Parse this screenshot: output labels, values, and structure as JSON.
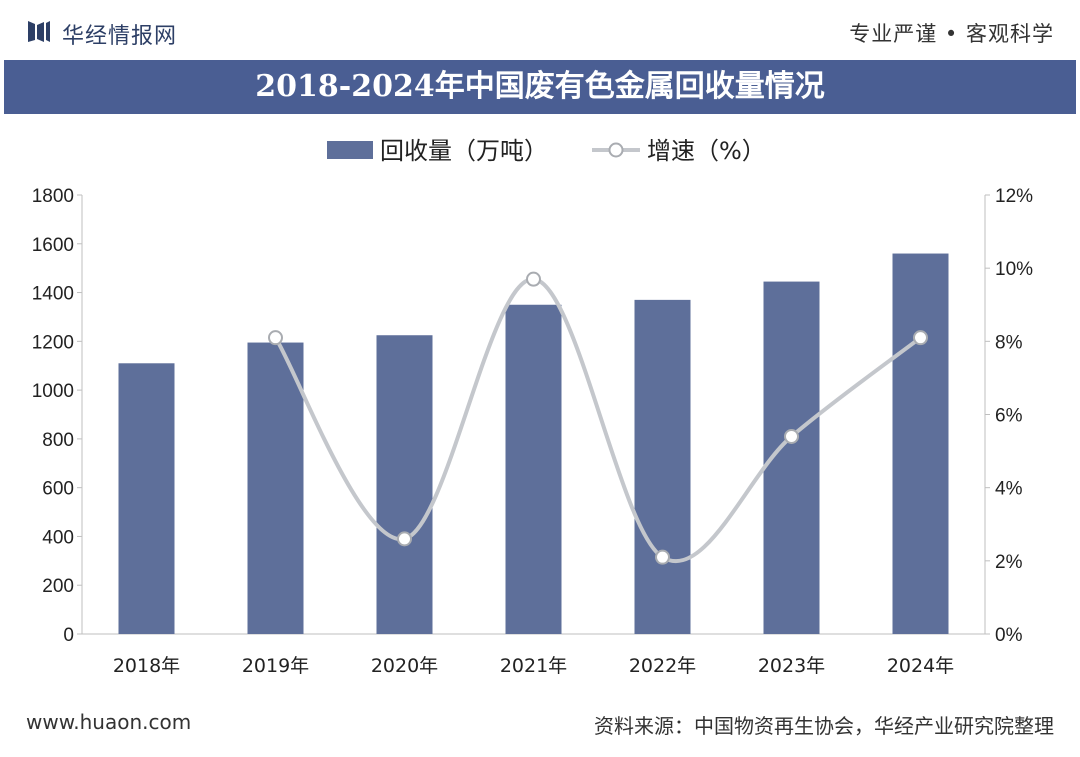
{
  "header": {
    "brand": "华经情报网",
    "slogan": "专业严谨 • 客观科学"
  },
  "footer": {
    "url": "www.huaon.com",
    "source": "资料来源：中国物资再生协会，华经产业研究院整理"
  },
  "colors": {
    "bar": "#5e6f9a",
    "line": "#c4c7cc",
    "title_band": "#4a5e93"
  },
  "chart_data": {
    "type": "bar",
    "title": "2018-2024年中国废有色金属回收量情况",
    "categories": [
      "2018年",
      "2019年",
      "2020年",
      "2021年",
      "2022年",
      "2023年",
      "2024年"
    ],
    "series": [
      {
        "name": "回收量（万吨）",
        "kind": "bar",
        "axis": "left",
        "values": [
          1110,
          1195,
          1225,
          1350,
          1370,
          1445,
          1560
        ]
      },
      {
        "name": "增速（%）",
        "kind": "line",
        "axis": "right",
        "values": [
          null,
          8.1,
          2.6,
          9.7,
          2.1,
          5.4,
          8.1
        ]
      }
    ],
    "left_axis": {
      "min": 0,
      "max": 1800,
      "ticks": [
        "0",
        "200",
        "400",
        "600",
        "800",
        "1000",
        "1200",
        "1400",
        "1600",
        "1800"
      ]
    },
    "right_axis": {
      "min": 0,
      "max": 12,
      "ticks": [
        "0%",
        "2%",
        "4%",
        "6%",
        "8%",
        "10%",
        "12%"
      ]
    },
    "legend": [
      "回收量（万吨）",
      "增速（%）"
    ],
    "legend_position": "top",
    "grid": false
  }
}
